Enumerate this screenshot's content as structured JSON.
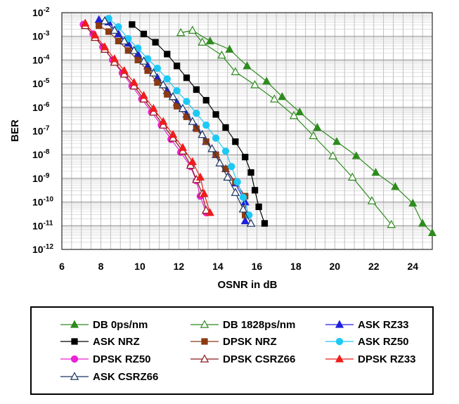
{
  "chart_data": {
    "type": "line",
    "xlabel": "OSNR in dB",
    "ylabel": "BER",
    "xlim": [
      6,
      25
    ],
    "ylim_exp": [
      -12,
      -2
    ],
    "y_scale": "log10",
    "x_ticks": [
      "6",
      "8",
      "10",
      "12",
      "14",
      "16",
      "18",
      "20",
      "22",
      "24"
    ],
    "y_tick_exponents": [
      "-2",
      "-3",
      "-4",
      "-5",
      "-6",
      "-7",
      "-8",
      "-9",
      "-10",
      "-11",
      "-12"
    ],
    "y_tick_base": "10",
    "grid": true,
    "legend_position": "bottom",
    "series": [
      {
        "name": "DB 0ps/nm",
        "color": "#2e8b1e",
        "marker": "triangle",
        "filled": true,
        "points": [
          [
            12.1,
            -2.85
          ],
          [
            12.7,
            -2.75
          ],
          [
            13.6,
            -3.2
          ],
          [
            14.6,
            -3.55
          ],
          [
            15.5,
            -4.25
          ],
          [
            16.5,
            -4.9
          ],
          [
            17.3,
            -5.55
          ],
          [
            18.2,
            -6.2
          ],
          [
            19.1,
            -6.85
          ],
          [
            20.1,
            -7.45
          ],
          [
            21.1,
            -8.05
          ],
          [
            22.1,
            -8.75
          ],
          [
            23.1,
            -9.35
          ],
          [
            24.0,
            -10.05
          ],
          [
            24.5,
            -10.9
          ],
          [
            25.0,
            -11.3
          ]
        ]
      },
      {
        "name": "DB 1828ps/nm",
        "color": "#2e8b1e",
        "marker": "triangle",
        "filled": false,
        "points": [
          [
            12.1,
            -2.85
          ],
          [
            12.7,
            -2.75
          ],
          [
            13.2,
            -3.25
          ],
          [
            14.2,
            -3.8
          ],
          [
            14.9,
            -4.5
          ],
          [
            15.9,
            -5.05
          ],
          [
            16.9,
            -5.65
          ],
          [
            17.9,
            -6.35
          ],
          [
            18.9,
            -7.2
          ],
          [
            19.9,
            -8.05
          ],
          [
            20.9,
            -8.95
          ],
          [
            21.9,
            -9.95
          ],
          [
            22.9,
            -10.95
          ]
        ]
      },
      {
        "name": "ASK RZ33",
        "color": "#1f1fe0",
        "marker": "triangle",
        "filled": true,
        "points": [
          [
            7.9,
            -2.3
          ],
          [
            8.4,
            -2.4
          ],
          [
            8.9,
            -2.9
          ],
          [
            9.4,
            -3.3
          ],
          [
            9.9,
            -3.75
          ],
          [
            10.4,
            -4.25
          ],
          [
            10.9,
            -4.75
          ],
          [
            11.4,
            -5.3
          ],
          [
            11.9,
            -5.8
          ],
          [
            12.4,
            -6.3
          ],
          [
            12.9,
            -6.85
          ],
          [
            13.4,
            -7.45
          ],
          [
            13.9,
            -8.0
          ],
          [
            14.4,
            -8.6
          ],
          [
            14.9,
            -9.2
          ],
          [
            15.4,
            -10.0
          ],
          [
            15.4,
            -10.8
          ]
        ]
      },
      {
        "name": "ASK NRZ",
        "color": "#000000",
        "marker": "square",
        "filled": true,
        "points": [
          [
            9.6,
            -2.5
          ],
          [
            10.2,
            -2.9
          ],
          [
            10.8,
            -3.25
          ],
          [
            11.4,
            -3.75
          ],
          [
            11.9,
            -4.25
          ],
          [
            12.4,
            -4.75
          ],
          [
            12.9,
            -5.25
          ],
          [
            13.4,
            -5.7
          ],
          [
            13.9,
            -6.3
          ],
          [
            14.4,
            -6.85
          ],
          [
            14.9,
            -7.45
          ],
          [
            15.4,
            -8.1
          ],
          [
            15.7,
            -8.75
          ],
          [
            15.9,
            -9.5
          ],
          [
            16.1,
            -10.2
          ],
          [
            16.4,
            -10.9
          ]
        ]
      },
      {
        "name": "DPSK NRZ",
        "color": "#8b3a12",
        "marker": "square",
        "filled": true,
        "points": [
          [
            7.9,
            -2.55
          ],
          [
            8.4,
            -2.8
          ],
          [
            8.9,
            -3.2
          ],
          [
            9.4,
            -3.6
          ],
          [
            9.9,
            -4.0
          ],
          [
            10.4,
            -4.45
          ],
          [
            10.9,
            -4.95
          ],
          [
            11.4,
            -5.45
          ],
          [
            11.9,
            -5.95
          ],
          [
            12.4,
            -6.4
          ],
          [
            12.9,
            -6.9
          ],
          [
            13.4,
            -7.45
          ],
          [
            13.9,
            -8.0
          ],
          [
            14.4,
            -8.6
          ],
          [
            14.9,
            -9.15
          ],
          [
            15.4,
            -9.75
          ],
          [
            15.4,
            -10.55
          ]
        ]
      },
      {
        "name": "ASK RZ50",
        "color": "#1ec8f5",
        "marker": "circle",
        "filled": true,
        "points": [
          [
            8.4,
            -2.25
          ],
          [
            8.9,
            -2.6
          ],
          [
            9.4,
            -3.1
          ],
          [
            9.9,
            -3.5
          ],
          [
            10.4,
            -3.95
          ],
          [
            10.9,
            -4.35
          ],
          [
            11.4,
            -4.8
          ],
          [
            11.9,
            -5.3
          ],
          [
            12.4,
            -5.75
          ],
          [
            12.9,
            -6.25
          ],
          [
            13.4,
            -6.75
          ],
          [
            13.9,
            -7.3
          ],
          [
            14.4,
            -7.85
          ],
          [
            14.7,
            -8.5
          ],
          [
            15.0,
            -9.15
          ],
          [
            15.3,
            -9.8
          ],
          [
            15.6,
            -10.55
          ]
        ]
      },
      {
        "name": "DPSK RZ50",
        "color": "#ee22d4",
        "marker": "circle",
        "filled": true,
        "points": [
          [
            7.1,
            -2.5
          ],
          [
            7.6,
            -2.9
          ],
          [
            8.1,
            -3.45
          ],
          [
            8.6,
            -4.0
          ],
          [
            9.1,
            -4.55
          ],
          [
            9.6,
            -5.1
          ],
          [
            10.1,
            -5.65
          ],
          [
            10.6,
            -6.2
          ],
          [
            11.1,
            -6.75
          ],
          [
            11.6,
            -7.35
          ],
          [
            12.1,
            -7.9
          ],
          [
            12.6,
            -8.5
          ],
          [
            12.9,
            -9.1
          ],
          [
            13.1,
            -9.75
          ],
          [
            13.4,
            -10.45
          ]
        ]
      },
      {
        "name": "DPSK CSRZ66",
        "color": "#8b1a1a",
        "marker": "triangle",
        "filled": false,
        "points": [
          [
            7.2,
            -2.55
          ],
          [
            7.7,
            -3.05
          ],
          [
            8.2,
            -3.55
          ],
          [
            8.7,
            -4.1
          ],
          [
            9.2,
            -4.6
          ],
          [
            9.7,
            -5.1
          ],
          [
            10.2,
            -5.65
          ],
          [
            10.7,
            -6.2
          ],
          [
            11.2,
            -6.75
          ],
          [
            11.7,
            -7.3
          ],
          [
            12.2,
            -7.85
          ],
          [
            12.6,
            -8.45
          ],
          [
            12.9,
            -9.05
          ],
          [
            13.2,
            -9.65
          ],
          [
            13.4,
            -10.35
          ]
        ]
      },
      {
        "name": "DPSK RZ33",
        "color": "#ee1c1c",
        "marker": "triangle",
        "filled": true,
        "points": [
          [
            7.2,
            -2.45
          ],
          [
            7.7,
            -2.95
          ],
          [
            8.2,
            -3.45
          ],
          [
            8.7,
            -3.95
          ],
          [
            9.2,
            -4.45
          ],
          [
            9.7,
            -4.95
          ],
          [
            10.2,
            -5.5
          ],
          [
            10.7,
            -6.05
          ],
          [
            11.2,
            -6.6
          ],
          [
            11.7,
            -7.15
          ],
          [
            12.2,
            -7.7
          ],
          [
            12.7,
            -8.3
          ],
          [
            13.1,
            -8.95
          ],
          [
            13.3,
            -9.65
          ],
          [
            13.6,
            -10.45
          ]
        ]
      },
      {
        "name": "ASK CSRZ66",
        "color": "#1a3560",
        "marker": "triangle",
        "filled": false,
        "points": [
          [
            8.2,
            -2.35
          ],
          [
            8.7,
            -2.75
          ],
          [
            9.2,
            -3.2
          ],
          [
            9.7,
            -3.6
          ],
          [
            10.2,
            -4.05
          ],
          [
            10.7,
            -4.55
          ],
          [
            11.2,
            -5.05
          ],
          [
            11.7,
            -5.55
          ],
          [
            12.2,
            -6.05
          ],
          [
            12.7,
            -6.6
          ],
          [
            13.2,
            -7.15
          ],
          [
            13.7,
            -7.75
          ],
          [
            14.1,
            -8.35
          ],
          [
            14.5,
            -8.95
          ],
          [
            14.9,
            -9.6
          ],
          [
            15.3,
            -10.3
          ],
          [
            15.7,
            -10.9
          ]
        ]
      }
    ]
  }
}
